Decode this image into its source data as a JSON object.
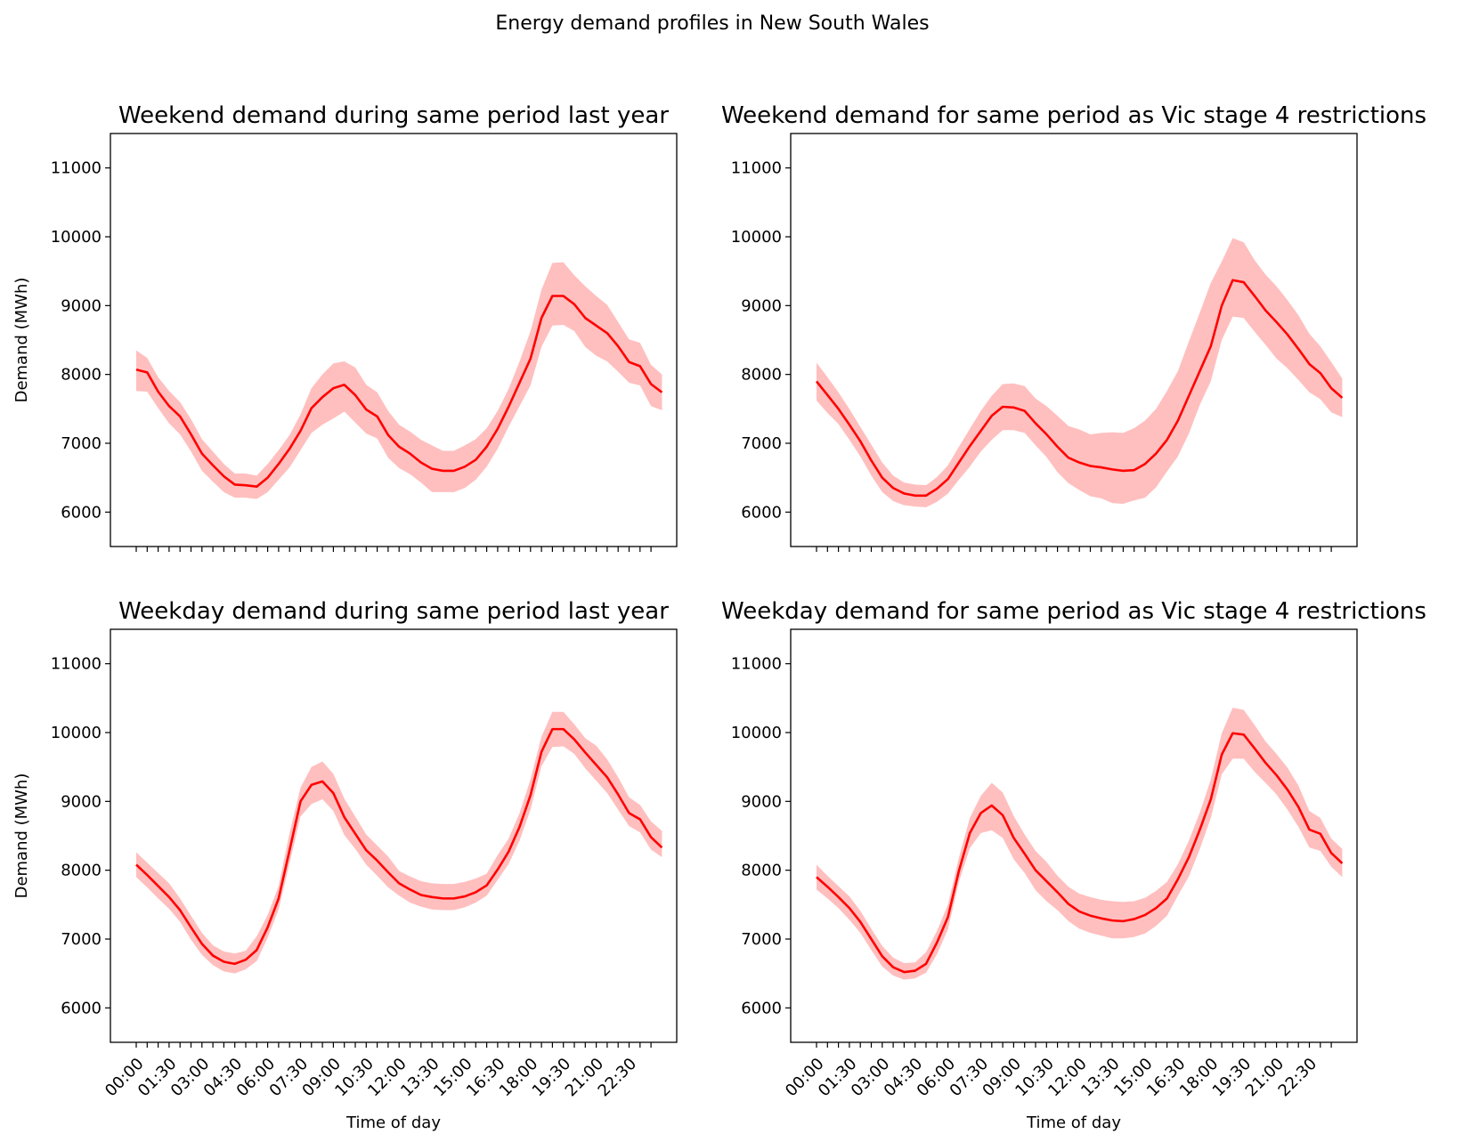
{
  "figure": {
    "suptitle": "Energy demand profiles in New South Wales"
  },
  "style": {
    "line_color": "#ff0000",
    "band_color": "#ffbfbf"
  },
  "chart_data": [
    {
      "type": "line",
      "title": "Weekend demand during same period last year",
      "xlabel": "",
      "ylabel": "Demand (MWh)",
      "ylim": [
        5500,
        11500
      ],
      "yticks": [
        6000,
        7000,
        8000,
        9000,
        10000,
        11000
      ],
      "show_xtick_labels": false,
      "series": [
        {
          "values": [
            8070,
            8030,
            7750,
            7540,
            7390,
            7130,
            6850,
            6680,
            6520,
            6400,
            6390,
            6370,
            6500,
            6700,
            6920,
            7180,
            7510,
            7670,
            7800,
            7850,
            7700,
            7490,
            7390,
            7120,
            6950,
            6850,
            6720,
            6630,
            6600,
            6600,
            6660,
            6760,
            6950,
            7210,
            7530,
            7880,
            8230,
            8820,
            9140,
            9140,
            9020,
            8820,
            8710,
            8600,
            8410,
            8180,
            8120,
            7860,
            7740
          ],
          "upper": [
            8350,
            8240,
            7960,
            7760,
            7600,
            7350,
            7060,
            6880,
            6700,
            6560,
            6560,
            6530,
            6700,
            6900,
            7120,
            7420,
            7800,
            8000,
            8160,
            8190,
            8100,
            7850,
            7740,
            7470,
            7270,
            7170,
            7050,
            6970,
            6890,
            6890,
            6970,
            7060,
            7220,
            7470,
            7790,
            8190,
            8630,
            9230,
            9620,
            9630,
            9440,
            9280,
            9140,
            9010,
            8760,
            8510,
            8460,
            8140,
            8000
          ],
          "lower": [
            7760,
            7750,
            7510,
            7290,
            7130,
            6880,
            6600,
            6440,
            6290,
            6210,
            6210,
            6190,
            6290,
            6470,
            6650,
            6900,
            7150,
            7270,
            7360,
            7460,
            7300,
            7140,
            7070,
            6790,
            6640,
            6550,
            6430,
            6290,
            6290,
            6290,
            6350,
            6470,
            6660,
            6920,
            7240,
            7540,
            7840,
            8400,
            8710,
            8720,
            8630,
            8400,
            8270,
            8190,
            8040,
            7880,
            7840,
            7540,
            7480
          ]
        }
      ]
    },
    {
      "type": "line",
      "title": "Weekend demand for same period as Vic stage 4 restrictions",
      "xlabel": "",
      "ylabel": "",
      "ylim": [
        5500,
        11500
      ],
      "yticks": [
        6000,
        7000,
        8000,
        9000,
        10000,
        11000
      ],
      "show_xtick_labels": false,
      "series": [
        {
          "values": [
            7900,
            7700,
            7500,
            7270,
            7030,
            6750,
            6500,
            6350,
            6270,
            6240,
            6240,
            6340,
            6480,
            6720,
            6960,
            7180,
            7400,
            7530,
            7520,
            7470,
            7290,
            7130,
            6950,
            6790,
            6720,
            6670,
            6650,
            6620,
            6600,
            6610,
            6700,
            6850,
            7050,
            7330,
            7690,
            8050,
            8410,
            9000,
            9370,
            9340,
            9140,
            8930,
            8760,
            8580,
            8370,
            8150,
            8020,
            7800,
            7660
          ],
          "upper": [
            8170,
            7960,
            7740,
            7500,
            7240,
            6980,
            6720,
            6530,
            6430,
            6400,
            6390,
            6510,
            6680,
            6950,
            7210,
            7470,
            7690,
            7860,
            7870,
            7830,
            7650,
            7540,
            7400,
            7250,
            7200,
            7130,
            7150,
            7160,
            7150,
            7220,
            7330,
            7500,
            7760,
            8050,
            8480,
            8900,
            9330,
            9640,
            9980,
            9920,
            9660,
            9450,
            9280,
            9080,
            8860,
            8590,
            8410,
            8180,
            7940
          ],
          "lower": [
            7620,
            7440,
            7280,
            7050,
            6810,
            6530,
            6290,
            6160,
            6100,
            6080,
            6070,
            6150,
            6270,
            6470,
            6660,
            6880,
            7050,
            7190,
            7190,
            7150,
            6970,
            6800,
            6580,
            6420,
            6320,
            6230,
            6200,
            6130,
            6120,
            6170,
            6210,
            6360,
            6590,
            6810,
            7140,
            7560,
            7900,
            8500,
            8840,
            8820,
            8620,
            8430,
            8230,
            8090,
            7920,
            7740,
            7640,
            7450,
            7380
          ]
        }
      ]
    },
    {
      "type": "line",
      "title": "Weekday demand during same period last year",
      "xlabel": "Time of day",
      "ylabel": "Demand (MWh)",
      "ylim": [
        5500,
        11500
      ],
      "yticks": [
        6000,
        7000,
        8000,
        9000,
        10000,
        11000
      ],
      "show_xtick_labels": true,
      "xtick_labels": [
        "00:00",
        "01:30",
        "03:00",
        "04:30",
        "06:00",
        "07:30",
        "09:00",
        "10:30",
        "12:00",
        "13:30",
        "15:00",
        "16:30",
        "18:00",
        "19:30",
        "21:00",
        "22:30"
      ],
      "series": [
        {
          "values": [
            8080,
            7930,
            7770,
            7610,
            7420,
            7170,
            6930,
            6760,
            6670,
            6640,
            6700,
            6840,
            7170,
            7590,
            8290,
            9000,
            9240,
            9290,
            9120,
            8770,
            8530,
            8290,
            8140,
            7970,
            7810,
            7720,
            7640,
            7610,
            7590,
            7590,
            7620,
            7680,
            7780,
            8010,
            8270,
            8630,
            9090,
            9720,
            10050,
            10050,
            9900,
            9710,
            9530,
            9350,
            9100,
            8830,
            8740,
            8480,
            8330
          ],
          "upper": [
            8260,
            8110,
            7960,
            7810,
            7590,
            7340,
            7090,
            6910,
            6820,
            6790,
            6830,
            7040,
            7350,
            7770,
            8540,
            9200,
            9500,
            9580,
            9400,
            9040,
            8780,
            8520,
            8360,
            8200,
            7990,
            7910,
            7840,
            7810,
            7800,
            7800,
            7830,
            7880,
            7950,
            8220,
            8460,
            8830,
            9320,
            9940,
            10300,
            10300,
            10120,
            9920,
            9810,
            9610,
            9350,
            9060,
            8950,
            8710,
            8570
          ],
          "lower": [
            7900,
            7750,
            7590,
            7440,
            7250,
            6990,
            6770,
            6620,
            6530,
            6500,
            6560,
            6680,
            7020,
            7430,
            8100,
            8780,
            8960,
            9030,
            8860,
            8510,
            8310,
            8080,
            7920,
            7750,
            7630,
            7530,
            7470,
            7430,
            7420,
            7420,
            7460,
            7530,
            7630,
            7860,
            8090,
            8430,
            8880,
            9510,
            9790,
            9800,
            9690,
            9480,
            9300,
            9120,
            8880,
            8640,
            8550,
            8300,
            8190
          ]
        }
      ]
    },
    {
      "type": "line",
      "title": "Weekday demand for same period as Vic stage 4 restrictions",
      "xlabel": "Time of day",
      "ylabel": "",
      "ylim": [
        5500,
        11500
      ],
      "yticks": [
        6000,
        7000,
        8000,
        9000,
        10000,
        11000
      ],
      "show_xtick_labels": true,
      "xtick_labels": [
        "00:00",
        "01:30",
        "03:00",
        "04:30",
        "06:00",
        "07:30",
        "09:00",
        "10:30",
        "12:00",
        "13:30",
        "15:00",
        "16:30",
        "18:00",
        "19:30",
        "21:00",
        "22:30"
      ],
      "series": [
        {
          "values": [
            7900,
            7760,
            7610,
            7450,
            7250,
            7000,
            6750,
            6590,
            6520,
            6540,
            6640,
            6950,
            7320,
            7990,
            8540,
            8830,
            8940,
            8800,
            8470,
            8240,
            8000,
            7840,
            7680,
            7510,
            7400,
            7340,
            7300,
            7270,
            7260,
            7290,
            7350,
            7450,
            7590,
            7870,
            8190,
            8590,
            9030,
            9680,
            9990,
            9970,
            9770,
            9560,
            9380,
            9170,
            8920,
            8590,
            8530,
            8250,
            8100
          ],
          "upper": [
            8080,
            7920,
            7770,
            7620,
            7410,
            7150,
            6900,
            6730,
            6650,
            6660,
            6810,
            7120,
            7500,
            8180,
            8760,
            9080,
            9270,
            9130,
            8790,
            8520,
            8280,
            8120,
            7920,
            7760,
            7660,
            7610,
            7570,
            7550,
            7540,
            7550,
            7600,
            7700,
            7830,
            8090,
            8430,
            8840,
            9320,
            9990,
            10360,
            10330,
            10110,
            9870,
            9690,
            9490,
            9230,
            8860,
            8760,
            8460,
            8310
          ],
          "lower": [
            7720,
            7590,
            7450,
            7280,
            7090,
            6840,
            6600,
            6470,
            6410,
            6430,
            6510,
            6780,
            7140,
            7830,
            8320,
            8540,
            8580,
            8470,
            8160,
            7960,
            7710,
            7550,
            7420,
            7260,
            7150,
            7090,
            7050,
            7010,
            7010,
            7030,
            7080,
            7190,
            7340,
            7630,
            7910,
            8310,
            8760,
            9390,
            9620,
            9620,
            9430,
            9270,
            9100,
            8880,
            8630,
            8330,
            8280,
            8050,
            7900
          ]
        }
      ]
    }
  ]
}
